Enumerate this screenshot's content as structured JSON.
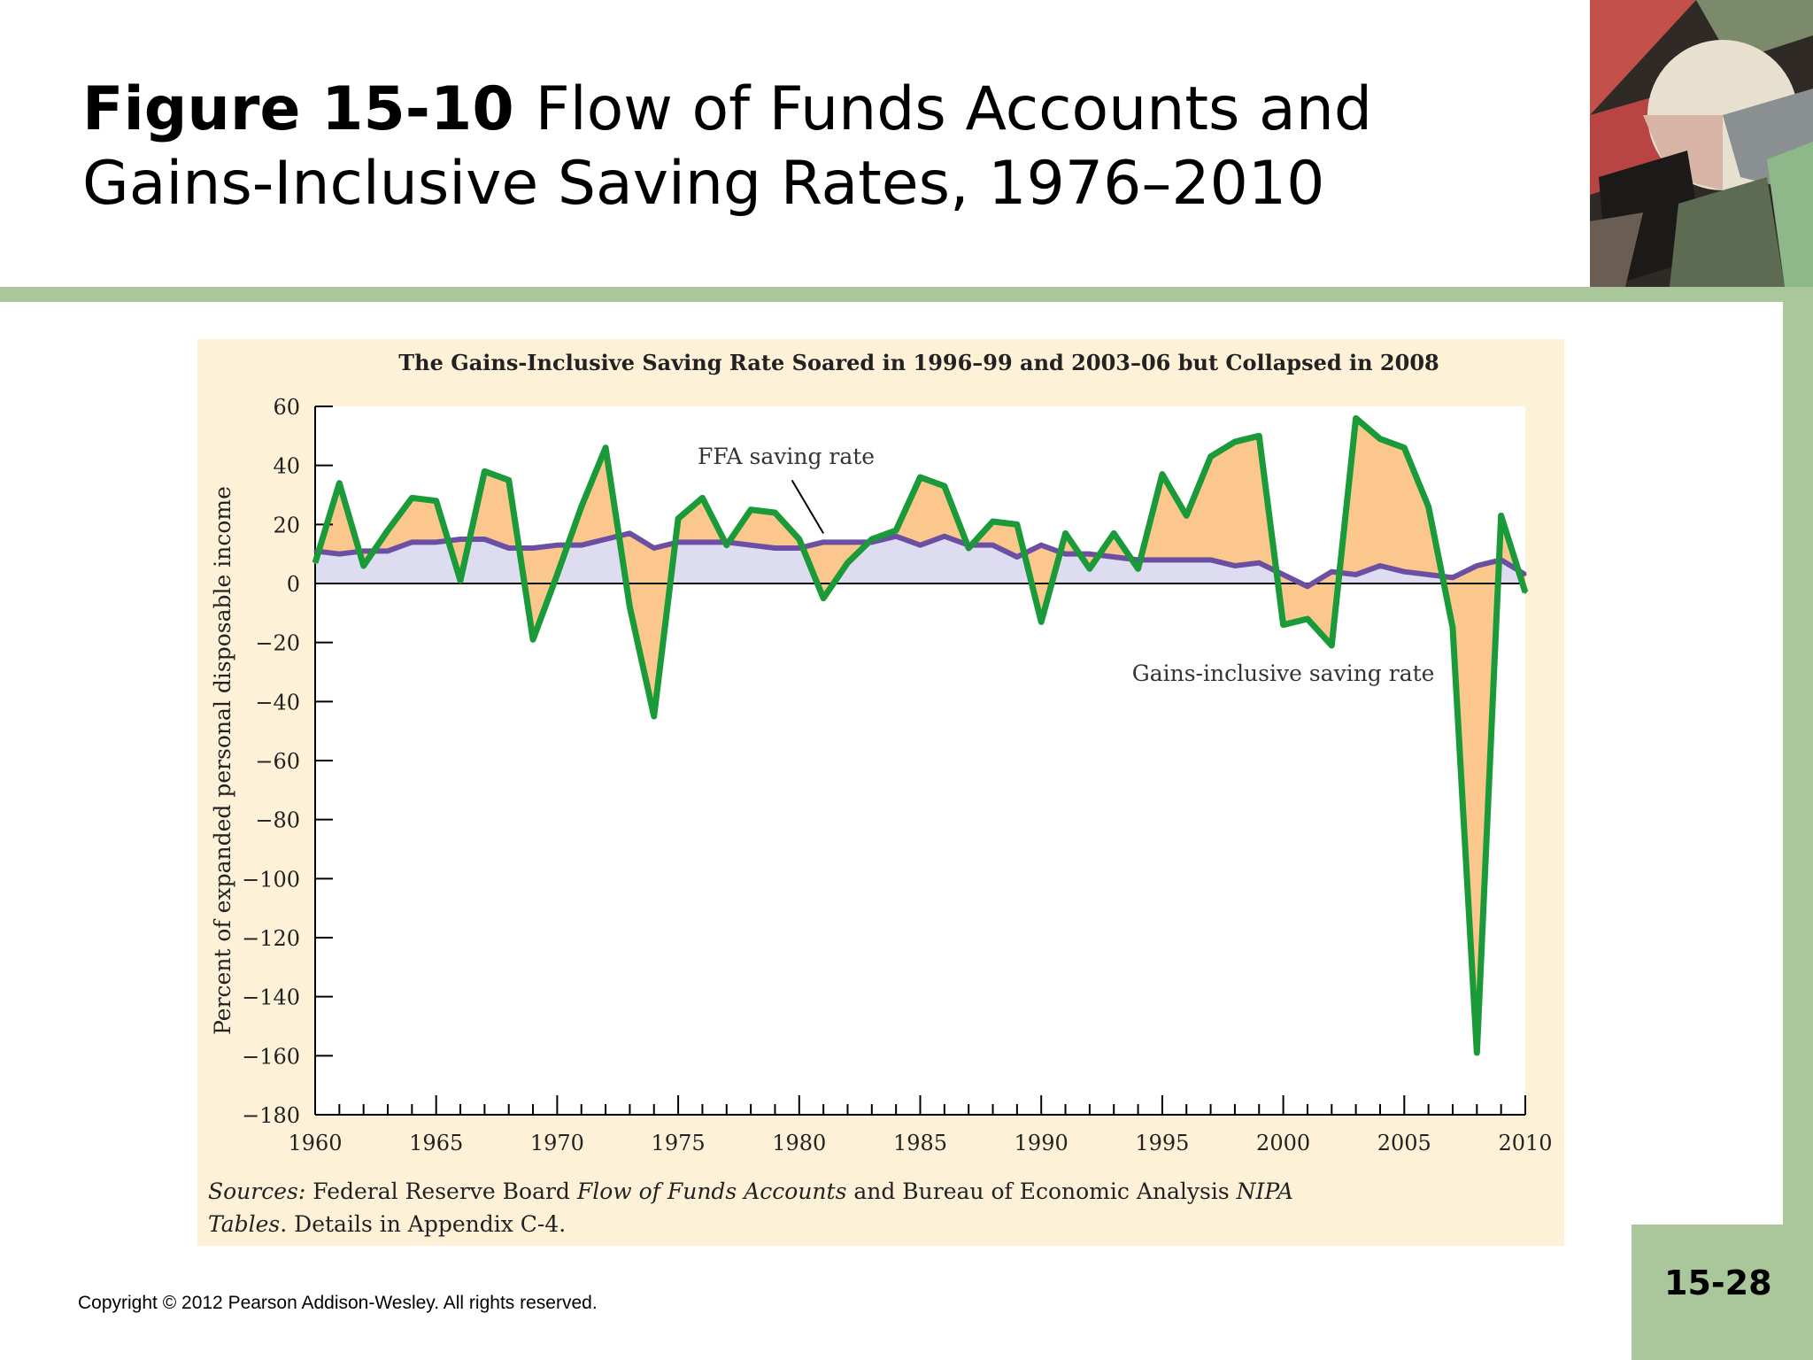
{
  "slide": {
    "figure_number": "Figure 15-10",
    "title": "Flow of Funds Accounts and Gains-Inclusive Saving Rates, 1976–2010",
    "page_number": "15-28",
    "copyright": "Copyright © 2012 Pearson Addison-Wesley. All rights reserved."
  },
  "sources": {
    "label": "Sources:",
    "text1": " Federal Reserve Board ",
    "italic1": "Flow of Funds Accounts",
    "text2": " and Bureau of Economic Analysis ",
    "italic2": "NIPA Tables",
    "text3": ". Details in Appendix C-4."
  },
  "colors": {
    "gains_line": "#1b9a3a",
    "ffa_line": "#6a4fa3",
    "gains_fill": "#fbc78c",
    "ffa_fill": "#dedcf0",
    "panel": "#fdf1d8",
    "band": "#a9c79a"
  },
  "chart_data": {
    "type": "line",
    "title": "The Gains-Inclusive Saving Rate Soared in 1996–99 and 2003–06 but Collapsed in 2008",
    "xlabel": "",
    "ylabel": "Percent of expanded personal disposable income",
    "xlim": [
      1960,
      2010
    ],
    "ylim": [
      -180,
      60
    ],
    "xticks": [
      1960,
      1965,
      1970,
      1975,
      1980,
      1985,
      1990,
      1995,
      2000,
      2005,
      2010
    ],
    "yticks": [
      60,
      40,
      20,
      0,
      -20,
      -40,
      -60,
      -80,
      -100,
      -120,
      -140,
      -160,
      -180
    ],
    "ytick_labels": [
      "60",
      "40",
      "20",
      "0",
      "−20",
      "−40",
      "−60",
      "−80",
      "−100",
      "−120",
      "−140",
      "−160",
      "−180"
    ],
    "grid": false,
    "annotations": [
      {
        "text": "FFA saving rate",
        "points_to": [
          1981,
          17
        ]
      },
      {
        "text": "Gains-inclusive saving rate",
        "at": [
          2000,
          -33
        ]
      }
    ],
    "x": [
      1960,
      1961,
      1962,
      1963,
      1964,
      1965,
      1966,
      1967,
      1968,
      1969,
      1970,
      1971,
      1972,
      1973,
      1974,
      1975,
      1976,
      1977,
      1978,
      1979,
      1980,
      1981,
      1982,
      1983,
      1984,
      1985,
      1986,
      1987,
      1988,
      1989,
      1990,
      1991,
      1992,
      1993,
      1994,
      1995,
      1996,
      1997,
      1998,
      1999,
      2000,
      2001,
      2002,
      2003,
      2004,
      2005,
      2006,
      2007,
      2008,
      2009,
      2010
    ],
    "series": [
      {
        "name": "Gains-inclusive saving rate",
        "values": [
          7,
          34,
          6,
          18,
          29,
          28,
          1,
          38,
          35,
          -19,
          3,
          26,
          46,
          -8,
          -45,
          22,
          29,
          13,
          25,
          24,
          15,
          -5,
          7,
          15,
          18,
          36,
          33,
          12,
          21,
          20,
          -13,
          17,
          5,
          17,
          5,
          37,
          23,
          43,
          48,
          50,
          -14,
          -12,
          -21,
          56,
          49,
          46,
          26,
          -15,
          -159,
          23,
          -3
        ]
      },
      {
        "name": "FFA saving rate",
        "values": [
          11,
          10,
          11,
          11,
          14,
          14,
          15,
          15,
          12,
          12,
          13,
          13,
          15,
          17,
          12,
          14,
          14,
          14,
          13,
          12,
          12,
          14,
          14,
          14,
          16,
          13,
          16,
          13,
          13,
          9,
          13,
          10,
          10,
          9,
          8,
          8,
          8,
          8,
          6,
          7,
          3,
          -1,
          4,
          3,
          6,
          4,
          3,
          2,
          6,
          8,
          3
        ]
      }
    ]
  }
}
